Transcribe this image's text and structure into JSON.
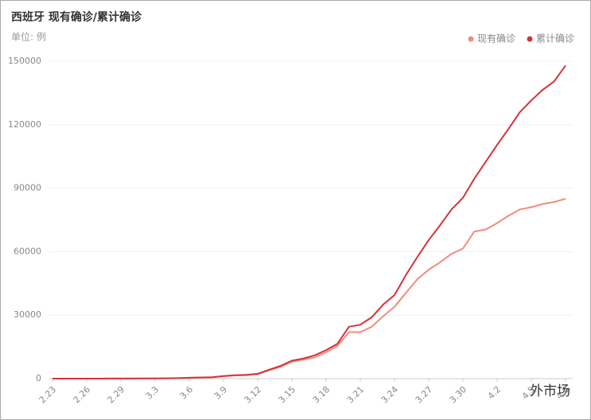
{
  "chart_data": {
    "type": "line",
    "title": "西班牙 现有确诊/累计确诊",
    "subtitle": "单位: 例",
    "watermark": "外市场",
    "categories": [
      "2.23",
      null,
      null,
      "2.26",
      null,
      null,
      "2.29",
      null,
      null,
      "3.3",
      null,
      null,
      "3.6",
      null,
      null,
      "3.9",
      null,
      null,
      "3.12",
      null,
      null,
      "3.15",
      null,
      null,
      "3.18",
      null,
      null,
      "3.21",
      null,
      null,
      "3.24",
      null,
      null,
      "3.27",
      null,
      null,
      "3.30",
      null,
      null,
      "4.2",
      null,
      null,
      "4.5",
      null,
      null,
      "4.8"
    ],
    "series": [
      {
        "name": "现有确诊",
        "color": "#f28b7e",
        "values": [
          2,
          2,
          3,
          7,
          12,
          25,
          32,
          45,
          80,
          115,
          150,
          220,
          380,
          520,
          650,
          1150,
          1500,
          1650,
          2100,
          3900,
          5600,
          8000,
          9000,
          10000,
          12500,
          15500,
          22000,
          22000,
          24500,
          29500,
          34000,
          40500,
          47000,
          51500,
          55000,
          59000,
          61500,
          69500,
          70500,
          73500,
          77000,
          80000,
          81000,
          82500,
          83500,
          85000
        ]
      },
      {
        "name": "累计确诊",
        "color": "#d6323a",
        "values": [
          2,
          2,
          3,
          7,
          12,
          25,
          32,
          45,
          84,
          120,
          165,
          230,
          400,
          560,
          680,
          1200,
          1600,
          1750,
          2300,
          4200,
          6000,
          8500,
          9500,
          11000,
          13500,
          16500,
          24500,
          25500,
          29000,
          35000,
          39500,
          49000,
          57500,
          65500,
          72500,
          80000,
          85500,
          94500,
          102500,
          110500,
          118000,
          126000,
          131500,
          136500,
          140500,
          148000
        ]
      }
    ],
    "ylim": [
      0,
      150000
    ],
    "yticks": [
      0,
      30000,
      60000,
      90000,
      120000,
      150000
    ],
    "grid": true,
    "legend": "top-right"
  }
}
